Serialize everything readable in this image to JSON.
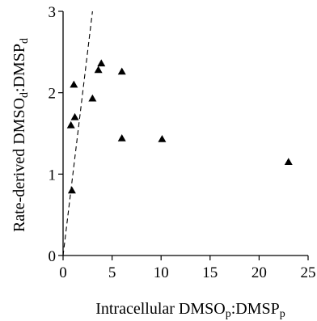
{
  "chart_data": {
    "type": "scatter",
    "xlabel": {
      "parts": [
        {
          "text": "Intracellular DMSO"
        },
        {
          "text": "p",
          "sub": true
        },
        {
          "text": ":DMSP"
        },
        {
          "text": "p",
          "sub": true
        }
      ]
    },
    "ylabel": {
      "parts": [
        {
          "text": "Rate-derived DMSO"
        },
        {
          "text": "d",
          "sub": true
        },
        {
          "text": ":DMSP"
        },
        {
          "text": "d",
          "sub": true
        }
      ]
    },
    "xlim": [
      0,
      25
    ],
    "ylim": [
      0,
      3
    ],
    "xticks": [
      0,
      5,
      10,
      15,
      20,
      25
    ],
    "yticks": [
      0,
      1,
      2,
      3
    ],
    "grid": false,
    "marker": "triangle",
    "points": [
      {
        "x": 0.9,
        "y": 0.8
      },
      {
        "x": 0.8,
        "y": 1.6
      },
      {
        "x": 1.2,
        "y": 1.7
      },
      {
        "x": 1.1,
        "y": 2.1
      },
      {
        "x": 3.0,
        "y": 1.93
      },
      {
        "x": 3.6,
        "y": 2.28
      },
      {
        "x": 3.9,
        "y": 2.36
      },
      {
        "x": 6.0,
        "y": 2.26
      },
      {
        "x": 6.0,
        "y": 1.44
      },
      {
        "x": 10.1,
        "y": 1.43
      },
      {
        "x": 23.0,
        "y": 1.15
      }
    ],
    "reference_line": {
      "style": "dashed",
      "points": [
        [
          0,
          0
        ],
        [
          3,
          3
        ]
      ]
    }
  }
}
